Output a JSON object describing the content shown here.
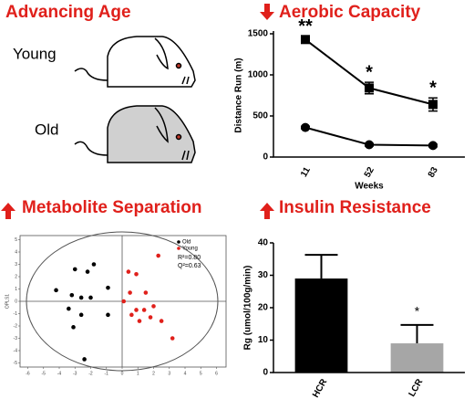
{
  "age_panel": {
    "title": "Advancing Age",
    "labels": [
      "Young",
      "Old"
    ]
  },
  "chart_data": [
    {
      "type": "line",
      "title": "Aerobic Capacity",
      "y_label": "Distance Run (m)",
      "x_label": "Weeks",
      "categories": [
        "11",
        "52",
        "83"
      ],
      "series": [
        {
          "color": "#000000",
          "marker": "square",
          "values": [
            1430,
            840,
            640
          ],
          "errors": [
            40,
            70,
            80
          ]
        },
        {
          "color": "#000000",
          "marker": "circle",
          "values": [
            360,
            150,
            140
          ],
          "errors": [
            15,
            15,
            15
          ]
        }
      ],
      "annotations": [
        "**",
        "*",
        "*"
      ],
      "ylim": [
        0,
        1500
      ],
      "yticks": [
        0,
        500,
        1000,
        1500
      ]
    },
    {
      "type": "scatter",
      "title": "Metabolite Separation",
      "y_label": "OPLS1",
      "series": [
        {
          "name": "Old",
          "color": "#000000",
          "x": [
            -1.8,
            -2.2,
            -3.0,
            -4.2,
            -3.2,
            -2.6,
            -2.0,
            -0.9,
            -3.4,
            -2.6,
            -3.1,
            -0.9,
            -2.4
          ],
          "y": [
            3.0,
            2.4,
            2.6,
            0.9,
            0.5,
            0.3,
            0.3,
            1.1,
            -0.6,
            -1.1,
            -2.1,
            -1.1,
            -4.7
          ]
        },
        {
          "name": "Young",
          "color": "#e0201b",
          "x": [
            2.3,
            0.4,
            0.9,
            0.5,
            1.5,
            0.1,
            0.9,
            1.4,
            0.6,
            2.0,
            2.5,
            3.2,
            1.8,
            1.1
          ],
          "y": [
            3.7,
            2.4,
            2.2,
            0.7,
            0.7,
            0.0,
            -0.7,
            -0.7,
            -1.1,
            -0.4,
            -1.6,
            -3.0,
            -1.3,
            -1.6
          ]
        }
      ],
      "annotations": [
        "R²=0.80",
        "Q²=0.63"
      ],
      "xlim": [
        -6,
        6
      ],
      "xticks": [
        -6,
        -5,
        -4,
        -3,
        -2,
        -1,
        0,
        1,
        2,
        3,
        4,
        5,
        6
      ],
      "ylim": [
        -5,
        5
      ],
      "yticks": [
        -5,
        -4,
        -3,
        -2,
        -1,
        0,
        1,
        2,
        3,
        4,
        5
      ]
    },
    {
      "type": "bar",
      "title": "Insulin Resistance",
      "y_label": "Rg (umol/100g/min)",
      "categories": [
        "HCR",
        "LCR"
      ],
      "values": [
        29,
        9
      ],
      "errors": [
        7.3,
        5.7
      ],
      "colors": [
        "#000000",
        "#a6a6a6"
      ],
      "annotations": [
        null,
        "*"
      ],
      "ylim": [
        0,
        40
      ],
      "yticks": [
        0,
        10,
        20,
        30,
        40
      ]
    }
  ]
}
